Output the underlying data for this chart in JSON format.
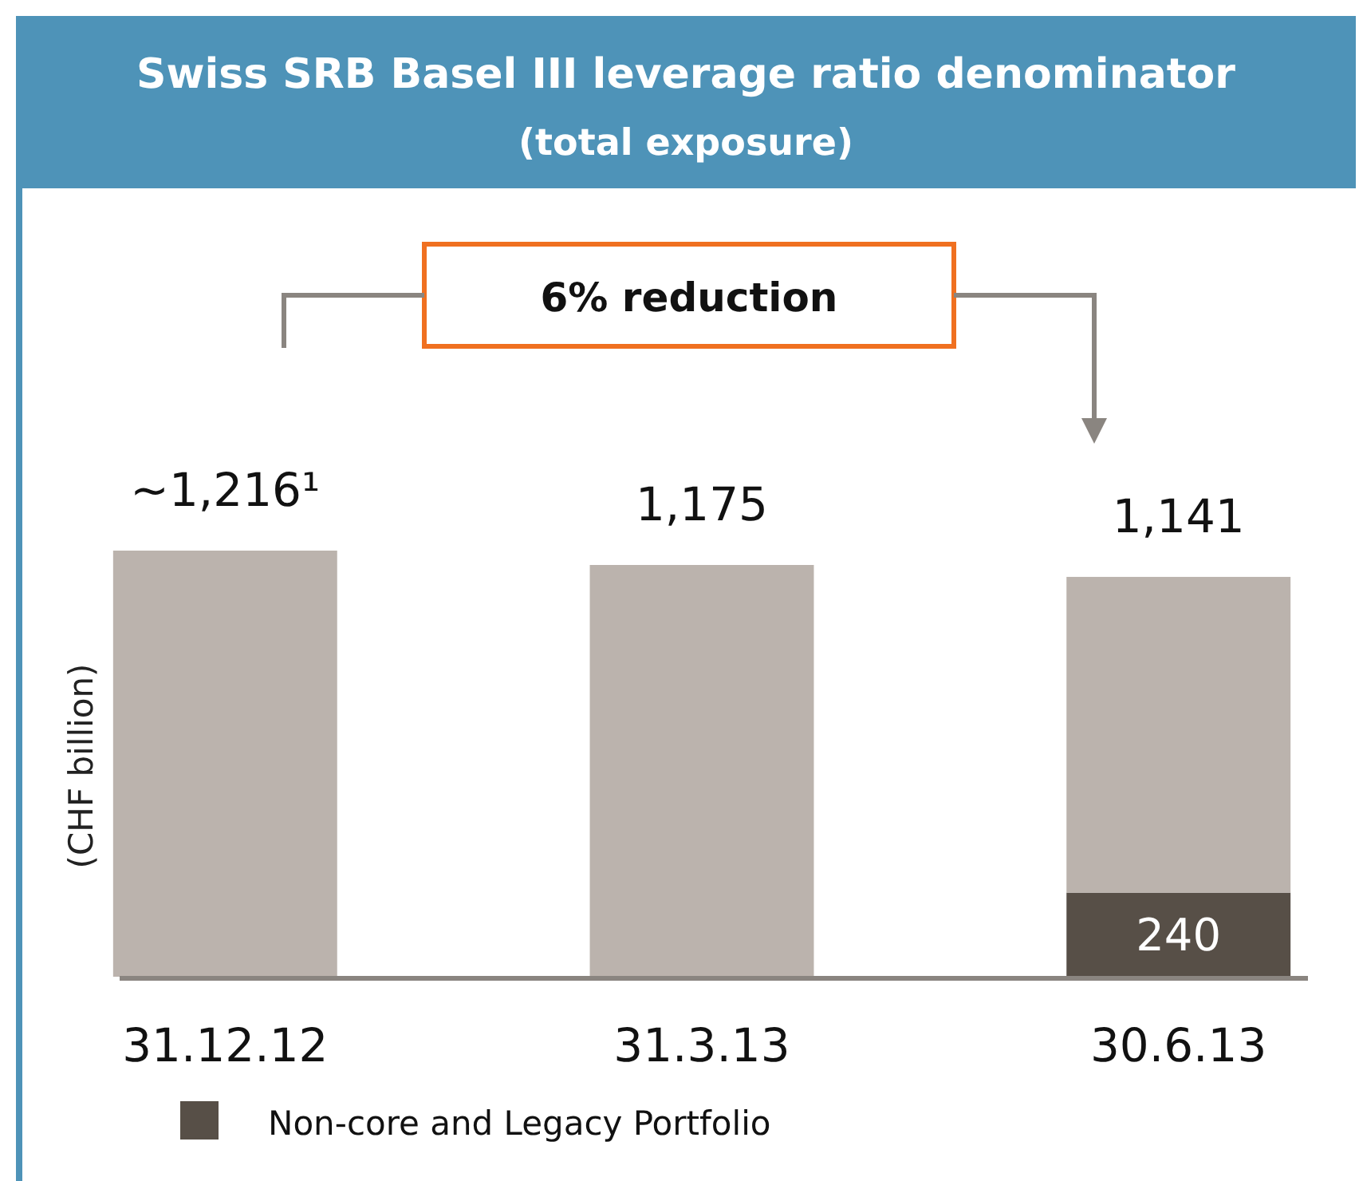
{
  "chart_data": {
    "type": "bar",
    "title": "Swiss SRB Basel III leverage ratio denominator",
    "subtitle": "(total exposure)",
    "ylabel": "(CHF billion)",
    "categories": [
      "31.12.12",
      "31.3.13",
      "30.6.13"
    ],
    "stacked": true,
    "series": [
      {
        "name": "Non-core and Legacy Portfolio",
        "color": "#574f47",
        "values": [
          null,
          null,
          240
        ],
        "value_labels": [
          null,
          null,
          "240"
        ]
      },
      {
        "color": "#bbb3ad",
        "values": [
          1216,
          1175,
          901
        ]
      }
    ],
    "totals": [
      "~1,216¹",
      "1,175",
      "1,141"
    ],
    "annotations": [
      "6% reduction"
    ],
    "legend": "bottom left"
  }
}
